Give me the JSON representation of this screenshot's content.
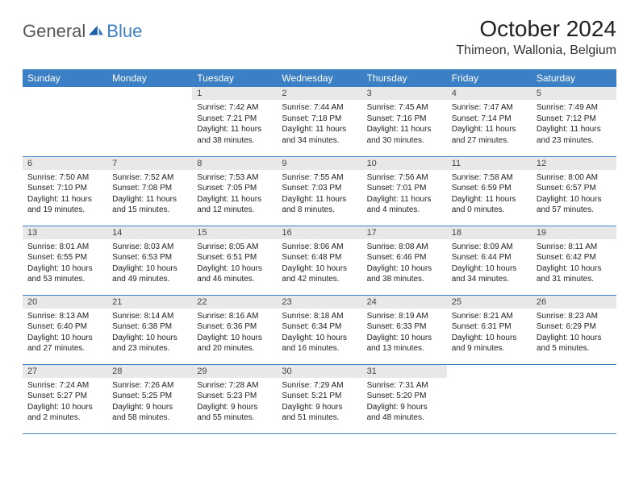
{
  "logo": {
    "part1": "General",
    "part2": "Blue"
  },
  "title": "October 2024",
  "location": "Thimeon, Wallonia, Belgium",
  "colors": {
    "header_bg": "#3b7fc4",
    "header_text": "#ffffff",
    "daynum_bg": "#e8e8e8",
    "body_text": "#222222",
    "rule": "#3b7fc4",
    "page_bg": "#ffffff"
  },
  "typography": {
    "title_fontsize": 28,
    "location_fontsize": 16,
    "weekday_fontsize": 12,
    "daynum_fontsize": 11,
    "body_fontsize": 10
  },
  "weekdays": [
    "Sunday",
    "Monday",
    "Tuesday",
    "Wednesday",
    "Thursday",
    "Friday",
    "Saturday"
  ],
  "weeks": [
    [
      null,
      null,
      {
        "n": "1",
        "sr": "Sunrise: 7:42 AM",
        "ss": "Sunset: 7:21 PM",
        "dl": "Daylight: 11 hours and 38 minutes."
      },
      {
        "n": "2",
        "sr": "Sunrise: 7:44 AM",
        "ss": "Sunset: 7:18 PM",
        "dl": "Daylight: 11 hours and 34 minutes."
      },
      {
        "n": "3",
        "sr": "Sunrise: 7:45 AM",
        "ss": "Sunset: 7:16 PM",
        "dl": "Daylight: 11 hours and 30 minutes."
      },
      {
        "n": "4",
        "sr": "Sunrise: 7:47 AM",
        "ss": "Sunset: 7:14 PM",
        "dl": "Daylight: 11 hours and 27 minutes."
      },
      {
        "n": "5",
        "sr": "Sunrise: 7:49 AM",
        "ss": "Sunset: 7:12 PM",
        "dl": "Daylight: 11 hours and 23 minutes."
      }
    ],
    [
      {
        "n": "6",
        "sr": "Sunrise: 7:50 AM",
        "ss": "Sunset: 7:10 PM",
        "dl": "Daylight: 11 hours and 19 minutes."
      },
      {
        "n": "7",
        "sr": "Sunrise: 7:52 AM",
        "ss": "Sunset: 7:08 PM",
        "dl": "Daylight: 11 hours and 15 minutes."
      },
      {
        "n": "8",
        "sr": "Sunrise: 7:53 AM",
        "ss": "Sunset: 7:05 PM",
        "dl": "Daylight: 11 hours and 12 minutes."
      },
      {
        "n": "9",
        "sr": "Sunrise: 7:55 AM",
        "ss": "Sunset: 7:03 PM",
        "dl": "Daylight: 11 hours and 8 minutes."
      },
      {
        "n": "10",
        "sr": "Sunrise: 7:56 AM",
        "ss": "Sunset: 7:01 PM",
        "dl": "Daylight: 11 hours and 4 minutes."
      },
      {
        "n": "11",
        "sr": "Sunrise: 7:58 AM",
        "ss": "Sunset: 6:59 PM",
        "dl": "Daylight: 11 hours and 0 minutes."
      },
      {
        "n": "12",
        "sr": "Sunrise: 8:00 AM",
        "ss": "Sunset: 6:57 PM",
        "dl": "Daylight: 10 hours and 57 minutes."
      }
    ],
    [
      {
        "n": "13",
        "sr": "Sunrise: 8:01 AM",
        "ss": "Sunset: 6:55 PM",
        "dl": "Daylight: 10 hours and 53 minutes."
      },
      {
        "n": "14",
        "sr": "Sunrise: 8:03 AM",
        "ss": "Sunset: 6:53 PM",
        "dl": "Daylight: 10 hours and 49 minutes."
      },
      {
        "n": "15",
        "sr": "Sunrise: 8:05 AM",
        "ss": "Sunset: 6:51 PM",
        "dl": "Daylight: 10 hours and 46 minutes."
      },
      {
        "n": "16",
        "sr": "Sunrise: 8:06 AM",
        "ss": "Sunset: 6:48 PM",
        "dl": "Daylight: 10 hours and 42 minutes."
      },
      {
        "n": "17",
        "sr": "Sunrise: 8:08 AM",
        "ss": "Sunset: 6:46 PM",
        "dl": "Daylight: 10 hours and 38 minutes."
      },
      {
        "n": "18",
        "sr": "Sunrise: 8:09 AM",
        "ss": "Sunset: 6:44 PM",
        "dl": "Daylight: 10 hours and 34 minutes."
      },
      {
        "n": "19",
        "sr": "Sunrise: 8:11 AM",
        "ss": "Sunset: 6:42 PM",
        "dl": "Daylight: 10 hours and 31 minutes."
      }
    ],
    [
      {
        "n": "20",
        "sr": "Sunrise: 8:13 AM",
        "ss": "Sunset: 6:40 PM",
        "dl": "Daylight: 10 hours and 27 minutes."
      },
      {
        "n": "21",
        "sr": "Sunrise: 8:14 AM",
        "ss": "Sunset: 6:38 PM",
        "dl": "Daylight: 10 hours and 23 minutes."
      },
      {
        "n": "22",
        "sr": "Sunrise: 8:16 AM",
        "ss": "Sunset: 6:36 PM",
        "dl": "Daylight: 10 hours and 20 minutes."
      },
      {
        "n": "23",
        "sr": "Sunrise: 8:18 AM",
        "ss": "Sunset: 6:34 PM",
        "dl": "Daylight: 10 hours and 16 minutes."
      },
      {
        "n": "24",
        "sr": "Sunrise: 8:19 AM",
        "ss": "Sunset: 6:33 PM",
        "dl": "Daylight: 10 hours and 13 minutes."
      },
      {
        "n": "25",
        "sr": "Sunrise: 8:21 AM",
        "ss": "Sunset: 6:31 PM",
        "dl": "Daylight: 10 hours and 9 minutes."
      },
      {
        "n": "26",
        "sr": "Sunrise: 8:23 AM",
        "ss": "Sunset: 6:29 PM",
        "dl": "Daylight: 10 hours and 5 minutes."
      }
    ],
    [
      {
        "n": "27",
        "sr": "Sunrise: 7:24 AM",
        "ss": "Sunset: 5:27 PM",
        "dl": "Daylight: 10 hours and 2 minutes."
      },
      {
        "n": "28",
        "sr": "Sunrise: 7:26 AM",
        "ss": "Sunset: 5:25 PM",
        "dl": "Daylight: 9 hours and 58 minutes."
      },
      {
        "n": "29",
        "sr": "Sunrise: 7:28 AM",
        "ss": "Sunset: 5:23 PM",
        "dl": "Daylight: 9 hours and 55 minutes."
      },
      {
        "n": "30",
        "sr": "Sunrise: 7:29 AM",
        "ss": "Sunset: 5:21 PM",
        "dl": "Daylight: 9 hours and 51 minutes."
      },
      {
        "n": "31",
        "sr": "Sunrise: 7:31 AM",
        "ss": "Sunset: 5:20 PM",
        "dl": "Daylight: 9 hours and 48 minutes."
      },
      null,
      null
    ]
  ]
}
